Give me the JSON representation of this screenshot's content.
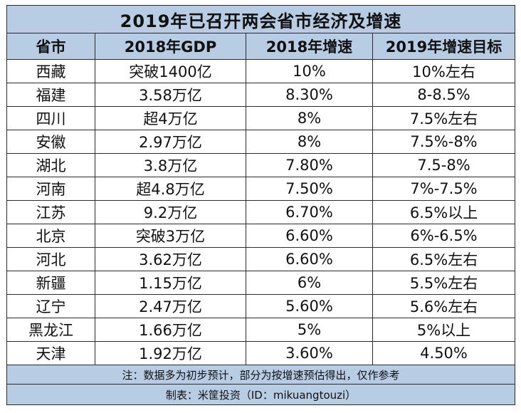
{
  "title": "2019年已召开两会省市经济及增速",
  "headers": [
    "省市",
    "2018年GDP",
    "2018年增速",
    "2019年增速目标"
  ],
  "rows": [
    [
      "西藏",
      "突破1400亿",
      "10%",
      "10%左右"
    ],
    [
      "福建",
      "3.58万亿",
      "8.30%",
      "8-8.5%"
    ],
    [
      "四川",
      "超4万亿",
      "8%",
      "7.5%左右"
    ],
    [
      "安徽",
      "2.97万亿",
      "8%",
      "7.5%-8%"
    ],
    [
      "湖北",
      "3.8万亿",
      "7.80%",
      "7.5-8%"
    ],
    [
      "河南",
      "超4.8万亿",
      "7.50%",
      "7%-7.5%"
    ],
    [
      "江苏",
      "9.2万亿",
      "6.70%",
      "6.5%以上"
    ],
    [
      "北京",
      "突破3万亿",
      "6.60%",
      "6%-6.5%"
    ],
    [
      "河北",
      "3.62万亿",
      "6.60%",
      "6.5%左右"
    ],
    [
      "新疆",
      "1.15万亿",
      "6%",
      "5.5%左右"
    ],
    [
      "辽宁",
      "2.47万亿",
      "5.60%",
      "5.6%左右"
    ],
    [
      "黑龙江",
      "1.66万亿",
      "5%",
      "5%以上"
    ],
    [
      "天津",
      "1.92万亿",
      "3.60%",
      "4.50%"
    ]
  ],
  "note": "注：数据多为初步预计，部分为按增速预估得出，仅作参考",
  "credit": "制表：米筐投资（ID：mikuangtouzi）",
  "colors": {
    "header_bg": "#b8cce4",
    "border": "#2b2b2b",
    "cell_bg": "#ffffff"
  }
}
